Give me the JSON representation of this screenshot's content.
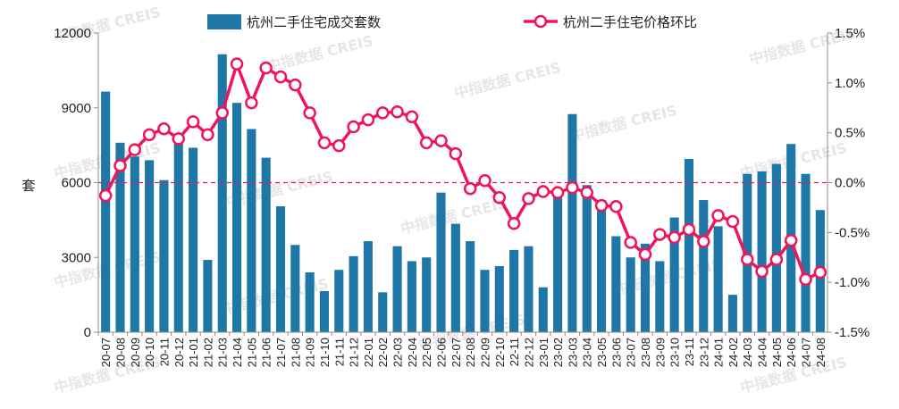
{
  "chart_data": {
    "type": "bar+line",
    "categories": [
      "20-07",
      "20-08",
      "20-09",
      "20-10",
      "20-11",
      "20-12",
      "21-01",
      "21-02",
      "21-03",
      "21-04",
      "21-05",
      "21-06",
      "21-07",
      "21-08",
      "21-09",
      "21-10",
      "21-11",
      "21-12",
      "22-01",
      "22-02",
      "22-03",
      "22-04",
      "22-05",
      "22-06",
      "22-07",
      "22-08",
      "22-09",
      "22-10",
      "22-11",
      "22-12",
      "23-01",
      "23-02",
      "23-03",
      "23-04",
      "23-05",
      "23-06",
      "23-07",
      "23-08",
      "23-09",
      "23-10",
      "23-11",
      "23-12",
      "24-01",
      "24-02",
      "24-03",
      "24-04",
      "24-05",
      "24-06",
      "24-07",
      "24-08"
    ],
    "series": [
      {
        "name": "杭州二手住宅成交套数",
        "type": "bar",
        "axis": "left",
        "color": "#1f77a8",
        "values": [
          9650,
          7600,
          7050,
          6900,
          6100,
          7800,
          7400,
          2900,
          11150,
          9200,
          8150,
          7000,
          5050,
          3500,
          2400,
          1650,
          2500,
          3050,
          3650,
          1600,
          3450,
          2850,
          3000,
          5600,
          4350,
          3650,
          2500,
          2650,
          3300,
          3450,
          1800,
          5700,
          8750,
          5900,
          5300,
          3850,
          3000,
          3550,
          2850,
          4600,
          6950,
          5300,
          4250,
          1500,
          6350,
          6450,
          6750,
          7550,
          6350,
          4900
        ]
      },
      {
        "name": "杭州二手住宅价格环比",
        "type": "line",
        "axis": "right",
        "color": "#f0145a",
        "values": [
          -0.13,
          0.17,
          0.33,
          0.48,
          0.54,
          0.44,
          0.61,
          0.48,
          0.7,
          1.19,
          0.8,
          1.15,
          1.06,
          0.98,
          0.7,
          0.4,
          0.37,
          0.56,
          0.63,
          0.7,
          0.71,
          0.66,
          0.4,
          0.42,
          0.29,
          -0.06,
          0.02,
          -0.15,
          -0.41,
          -0.16,
          -0.09,
          -0.1,
          -0.05,
          -0.1,
          -0.23,
          -0.24,
          -0.6,
          -0.72,
          -0.52,
          -0.55,
          -0.47,
          -0.59,
          -0.33,
          -0.39,
          -0.77,
          -0.89,
          -0.77,
          -0.58,
          -0.97,
          -0.9
        ]
      }
    ],
    "ylabel": "套",
    "ylim_left": [
      0,
      12000
    ],
    "yticks_left": [
      "0",
      "3000",
      "6000",
      "9000",
      "12000"
    ],
    "ylim_right": [
      -1.5,
      1.5
    ],
    "yticks_right": [
      "-1.5%",
      "-1.0%",
      "-0.5%",
      "0.0%",
      "0.5%",
      "1.0%",
      "1.5%"
    ],
    "reference_line": 0,
    "legend_position": "top",
    "grid": false
  },
  "watermark": "中指数据 CREIS"
}
